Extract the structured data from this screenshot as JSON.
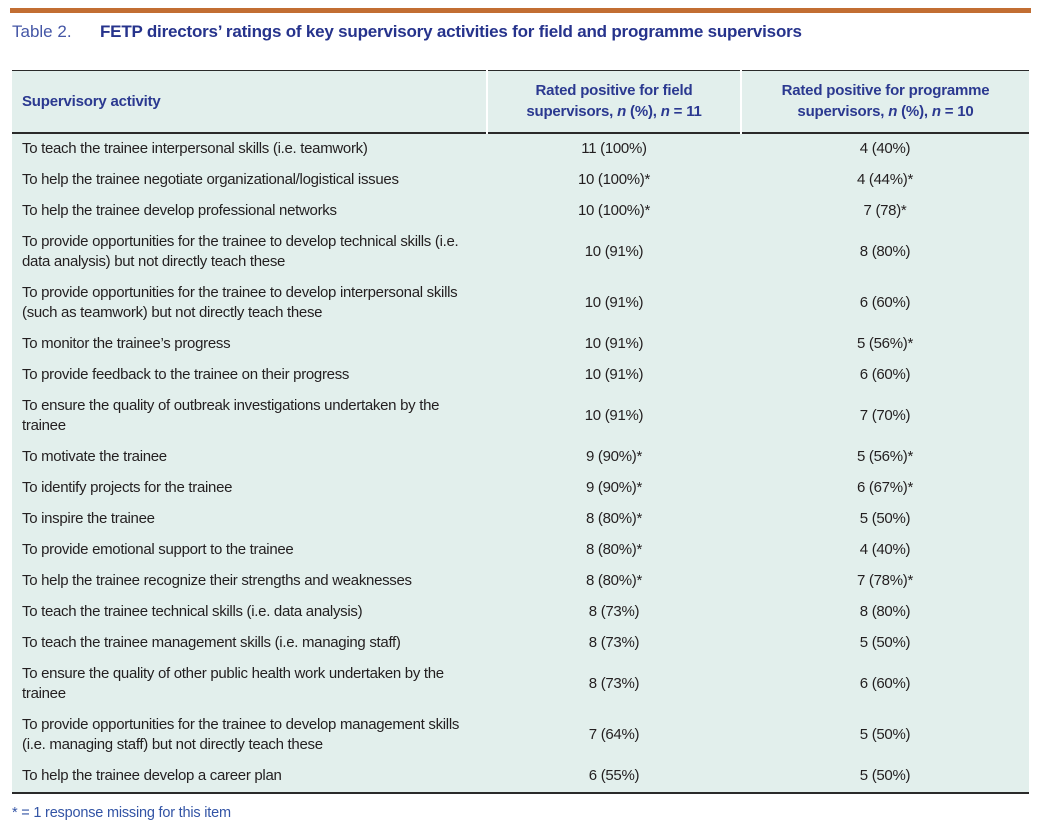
{
  "caption": {
    "label": "Table 2.",
    "title": "FETP directors’ ratings of key supervisory activities for field and programme supervisors"
  },
  "table": {
    "columns": [
      {
        "label": "Supervisory activity"
      },
      {
        "segments": [
          {
            "t": "Rated positive for field supervisors, "
          },
          {
            "t": "n",
            "i": true
          },
          {
            "t": " (%), "
          },
          {
            "t": "n",
            "i": true
          },
          {
            "t": " = 11"
          }
        ]
      },
      {
        "segments": [
          {
            "t": "Rated positive for programme supervisors, "
          },
          {
            "t": "n",
            "i": true
          },
          {
            "t": " (%), "
          },
          {
            "t": "n",
            "i": true
          },
          {
            "t": " = 10"
          }
        ]
      }
    ],
    "rows": [
      {
        "activity": "To teach the trainee interpersonal skills (i.e. teamwork)",
        "field": "11 (100%)",
        "programme": "4 (40%)"
      },
      {
        "activity": "To help the trainee negotiate organizational/logistical issues",
        "field": "10 (100%)*",
        "programme": "4 (44%)*"
      },
      {
        "activity": "To help the trainee develop professional networks",
        "field": "10 (100%)*",
        "programme": "7 (78)*"
      },
      {
        "activity": "To provide opportunities for the trainee to develop technical skills (i.e. data analysis) but not directly teach these",
        "field": "10 (91%)",
        "programme": "8 (80%)"
      },
      {
        "activity": "To provide opportunities for the trainee to develop interpersonal skills (such as teamwork) but not directly teach these",
        "field": "10 (91%)",
        "programme": "6 (60%)"
      },
      {
        "activity": "To monitor the trainee’s progress",
        "field": "10 (91%)",
        "programme": "5 (56%)*"
      },
      {
        "activity": "To provide feedback to the trainee on their progress",
        "field": "10 (91%)",
        "programme": "6 (60%)"
      },
      {
        "activity": "To ensure the quality of outbreak investigations undertaken by the trainee",
        "field": "10 (91%)",
        "programme": "7 (70%)"
      },
      {
        "activity": "To motivate the trainee",
        "field": "9 (90%)*",
        "programme": "5 (56%)*"
      },
      {
        "activity": "To identify projects for the trainee",
        "field": "9 (90%)*",
        "programme": "6 (67%)*"
      },
      {
        "activity": "To inspire the trainee",
        "field": "8 (80%)*",
        "programme": "5 (50%)"
      },
      {
        "activity": "To provide emotional support to the trainee",
        "field": "8 (80%)*",
        "programme": "4 (40%)"
      },
      {
        "activity": "To help the trainee recognize their strengths and weaknesses",
        "field": "8 (80%)*",
        "programme": "7 (78%)*"
      },
      {
        "activity": "To teach the trainee technical skills (i.e. data analysis)",
        "field": "8 (73%)",
        "programme": "8 (80%)"
      },
      {
        "activity": "To teach the trainee management skills (i.e. managing staff)",
        "field": "8 (73%)",
        "programme": "5 (50%)"
      },
      {
        "activity": "To ensure the quality of other public health work undertaken by the trainee",
        "field": "8 (73%)",
        "programme": "6 (60%)"
      },
      {
        "activity": "To provide opportunities for the trainee to develop management skills (i.e. managing staff) but not directly teach these",
        "field": "7 (64%)",
        "programme": "5 (50%)"
      },
      {
        "activity": "To help the trainee develop a career plan",
        "field": "6 (55%)",
        "programme": "5 (50%)"
      }
    ]
  },
  "footnote": "* = 1 response missing for this item",
  "colors": {
    "accent_bar": "#c26e32",
    "caption_label_blue": "#4456a6",
    "title_navy": "#26338c",
    "header_navy": "#2b3990",
    "table_background": "#e2efec",
    "body_text": "#231f20",
    "footnote_blue": "#3354a5",
    "rule_dark": "#2a2a2a"
  }
}
